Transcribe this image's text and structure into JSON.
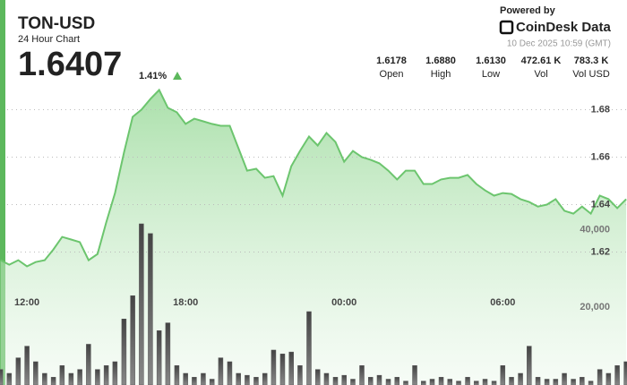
{
  "header": {
    "symbol": "TON-USD",
    "subtitle": "24 Hour Chart",
    "price": "1.6407",
    "change": "1.41%",
    "powered": "Powered by",
    "brand": "CoinDesk Data",
    "timestamp": "10 Dec 2025 10:59 (GMT)",
    "stats": [
      {
        "value": "1.6178",
        "label": "Open"
      },
      {
        "value": "1.6880",
        "label": "High"
      },
      {
        "value": "1.6130",
        "label": "Low"
      },
      {
        "value": "472.61 K",
        "label": "Vol"
      },
      {
        "value": "783.3 K",
        "label": "Vol USD"
      }
    ]
  },
  "chart_data": {
    "type": "line",
    "x": [
      11,
      11.33,
      11.67,
      12,
      12.33,
      12.67,
      13,
      13.33,
      13.67,
      14,
      14.33,
      14.67,
      15,
      15.33,
      15.67,
      16,
      16.33,
      16.67,
      17,
      17.33,
      17.67,
      18,
      18.33,
      18.67,
      19,
      19.33,
      19.67,
      20,
      20.33,
      20.67,
      21,
      21.33,
      21.67,
      22,
      22.33,
      22.67,
      23,
      23.33,
      23.67,
      24,
      24.33,
      24.67,
      25,
      25.33,
      25.67,
      26,
      26.33,
      26.67,
      27,
      27.33,
      27.67,
      28,
      28.33,
      28.67,
      29,
      29.33,
      29.67,
      30,
      30.33,
      30.67,
      31,
      31.33,
      31.67,
      32,
      32.33,
      32.67,
      33,
      33.33,
      33.67,
      34,
      34.33,
      34.67
    ],
    "xlim": [
      10.98,
      34.7
    ],
    "xticks": [
      {
        "value": 12,
        "label": "12:00"
      },
      {
        "value": 18,
        "label": "18:00"
      },
      {
        "value": 24,
        "label": "00:00"
      },
      {
        "value": 30,
        "label": "06:00"
      }
    ],
    "ylim": [
      1.564,
      1.69
    ],
    "yticks": [
      1.62,
      1.64,
      1.66,
      1.68
    ],
    "y2lim": [
      0,
      77000
    ],
    "y2ticks": [
      {
        "value": 20000,
        "label": "20,000"
      },
      {
        "value": 40000,
        "label": "40,000"
      }
    ],
    "grid": true,
    "series": [
      {
        "color": "#6cc56e",
        "values": [
          1.6166,
          1.6147,
          1.6166,
          1.614,
          1.6158,
          1.6166,
          1.6211,
          1.6264,
          1.6253,
          1.6242,
          1.6166,
          1.6192,
          1.6325,
          1.6449,
          1.6619,
          1.677,
          1.68,
          1.6845,
          1.6883,
          1.6808,
          1.6789,
          1.674,
          1.6762,
          1.6751,
          1.674,
          1.6732,
          1.6732,
          1.6638,
          1.6543,
          1.6551,
          1.6513,
          1.652,
          1.6438,
          1.6562,
          1.6626,
          1.6687,
          1.6649,
          1.6702,
          1.6664,
          1.6581,
          1.6626,
          1.66,
          1.6589,
          1.6574,
          1.6543,
          1.6506,
          1.6543,
          1.6543,
          1.6487,
          1.6487,
          1.6506,
          1.6513,
          1.6513,
          1.6525,
          1.6487,
          1.646,
          1.6438,
          1.6449,
          1.6445,
          1.6423,
          1.6411,
          1.6392,
          1.64,
          1.6423,
          1.6374,
          1.6362,
          1.6392,
          1.6362,
          1.6438,
          1.6423,
          1.6385,
          1.6423
        ]
      },
      {
        "axis": "y2",
        "color": "#5a5a5a",
        "values": [
          4000,
          3000,
          7000,
          10000,
          6000,
          3000,
          2000,
          5000,
          3000,
          4000,
          10500,
          4000,
          5000,
          6000,
          17000,
          23000,
          41500,
          39000,
          14000,
          16000,
          5000,
          3000,
          2000,
          3000,
          1500,
          7000,
          6000,
          3000,
          2500,
          2000,
          3000,
          9000,
          8000,
          8500,
          5000,
          18900,
          4000,
          3000,
          2000,
          2500,
          1500,
          5000,
          2000,
          2500,
          1500,
          2000,
          1000,
          5000,
          1000,
          1500,
          2000,
          1500,
          1000,
          2000,
          1000,
          1500,
          1000,
          5000,
          2000,
          3000,
          10000,
          2000,
          1500,
          1500,
          3000,
          1500,
          2000,
          1000,
          4000,
          3000,
          5000,
          6000
        ]
      }
    ]
  }
}
